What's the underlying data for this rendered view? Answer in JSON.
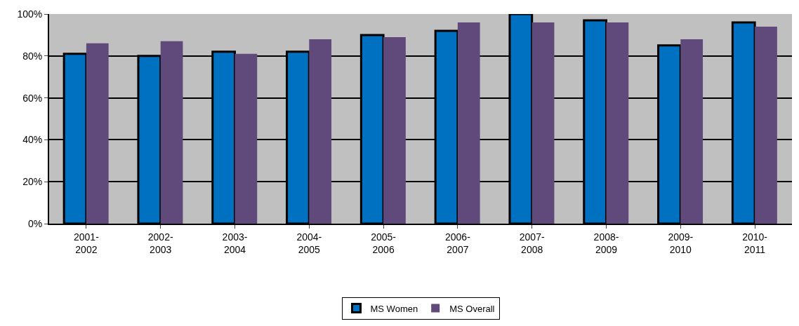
{
  "chart_data": {
    "type": "bar",
    "categories": [
      "2001-2002",
      "2002-2003",
      "2003-2004",
      "2004-2005",
      "2005-2006",
      "2006-2007",
      "2007-2008",
      "2008-2009",
      "2009-2010",
      "2010-2011"
    ],
    "series": [
      {
        "name": "MS Women",
        "color": "#0070c0",
        "values": [
          81,
          80,
          82,
          82,
          90,
          92,
          100,
          97,
          85,
          96
        ]
      },
      {
        "name": "MS Overall",
        "color": "#604a7b",
        "values": [
          86,
          87,
          81,
          88,
          89,
          96,
          96,
          96,
          88,
          94
        ]
      }
    ],
    "ylim": [
      0,
      100
    ],
    "yticks": [
      {
        "value": 0,
        "label": "0%"
      },
      {
        "value": 20,
        "label": "20%"
      },
      {
        "value": 40,
        "label": "40%"
      },
      {
        "value": 60,
        "label": "60%"
      },
      {
        "value": 80,
        "label": "80%"
      },
      {
        "value": 100,
        "label": "100%"
      }
    ],
    "grid": "y",
    "legend": "bottom"
  }
}
